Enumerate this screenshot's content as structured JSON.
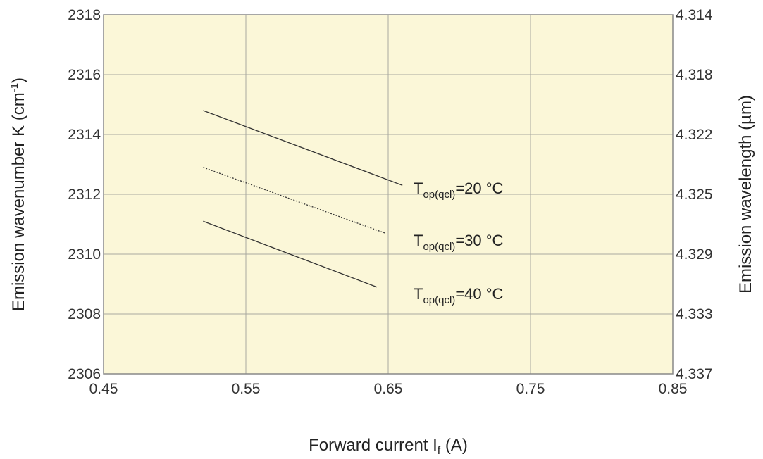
{
  "chart_data": {
    "type": "line",
    "xlabel": "Forward current I",
    "xlabel_sub": "f",
    "xlabel_unit": " (A)",
    "ylabel": "Emission wavenumber K (cm",
    "ylabel_sup": "-1",
    "ylabel_end": ")",
    "y2label": "Emission wavelength (µm)",
    "xlim": [
      0.45,
      0.85
    ],
    "ylim": [
      2306,
      2318
    ],
    "x_ticks": [
      "0.45",
      "0.55",
      "0.65",
      "0.75",
      "0.85"
    ],
    "y_ticks": [
      "2306",
      "2308",
      "2310",
      "2312",
      "2314",
      "2316",
      "2318"
    ],
    "y2_ticks": [
      "4.337",
      "4.333",
      "4.329",
      "4.325",
      "4.322",
      "4.318",
      "4.314"
    ],
    "grid": true,
    "background_color": "#fbf7d8",
    "series": [
      {
        "name": "T",
        "name_sub": "op(qcl)",
        "name_rest": "=20 °C",
        "x": [
          0.52,
          0.66
        ],
        "y": [
          2314.8,
          2312.3
        ],
        "style": "solid"
      },
      {
        "name": "T",
        "name_sub": "op(qcl)",
        "name_rest": "=30 °C",
        "x": [
          0.52,
          0.648
        ],
        "y": [
          2312.9,
          2310.7
        ],
        "style": "dotted"
      },
      {
        "name": "T",
        "name_sub": "op(qcl)",
        "name_rest": "=40 °C",
        "x": [
          0.52,
          0.642
        ],
        "y": [
          2311.1,
          2308.9
        ],
        "style": "solid"
      }
    ]
  }
}
